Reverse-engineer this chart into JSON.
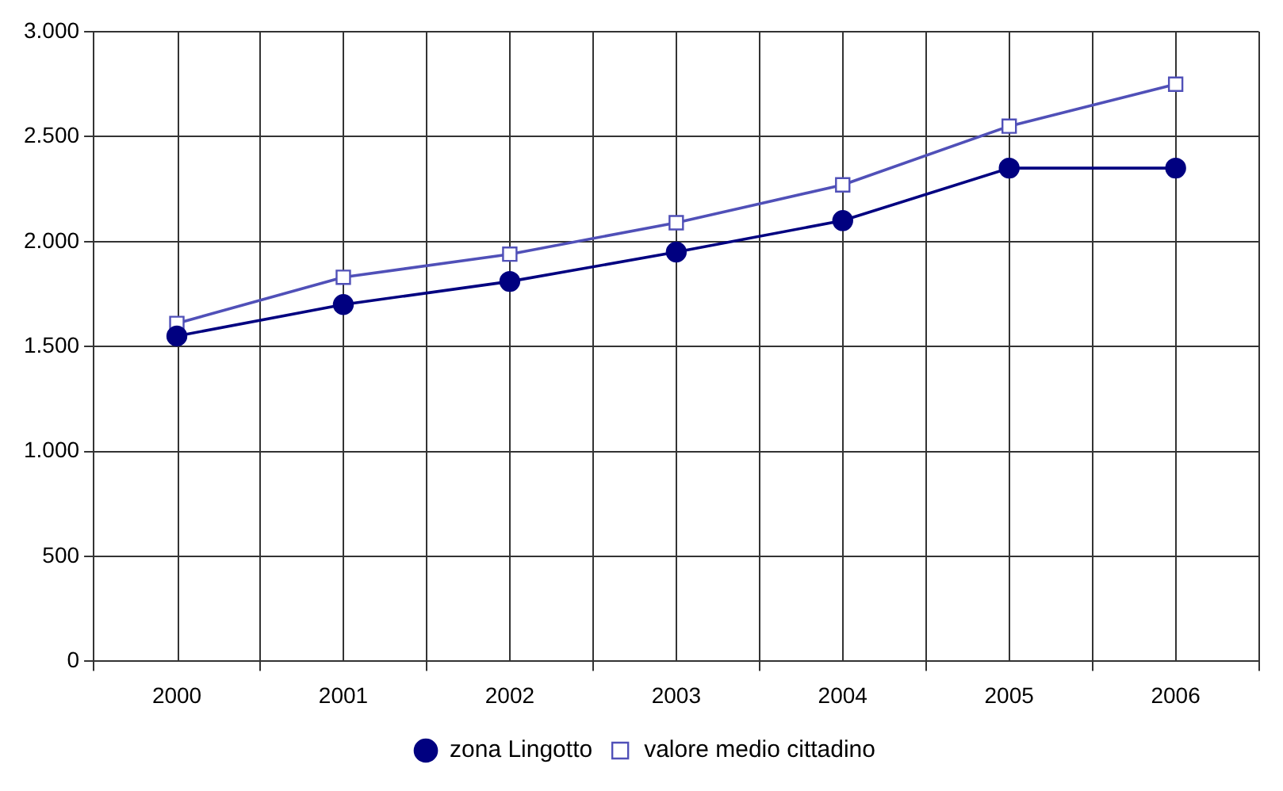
{
  "chart_data": {
    "type": "line",
    "categories": [
      "2000",
      "2001",
      "2002",
      "2003",
      "2004",
      "2005",
      "2006"
    ],
    "series": [
      {
        "name": "zona Lingotto",
        "color": "#000080",
        "marker": "circle",
        "values": [
          1550,
          1700,
          1810,
          1950,
          2100,
          2350,
          2350
        ]
      },
      {
        "name": "valore medio cittadino",
        "color": "#5050b8",
        "marker": "square",
        "values": [
          1610,
          1830,
          1940,
          2090,
          2270,
          2550,
          2750
        ]
      }
    ],
    "ylim": [
      0,
      3000
    ],
    "yticks": [
      {
        "value": 0,
        "label": "0"
      },
      {
        "value": 500,
        "label": "500"
      },
      {
        "value": 1000,
        "label": "1.000"
      },
      {
        "value": 1500,
        "label": "1.500"
      },
      {
        "value": 2000,
        "label": "2.000"
      },
      {
        "value": 2500,
        "label": "2.500"
      },
      {
        "value": 3000,
        "label": "3.000"
      }
    ],
    "grid": true,
    "legend": "bottom",
    "line_style": "solid"
  }
}
